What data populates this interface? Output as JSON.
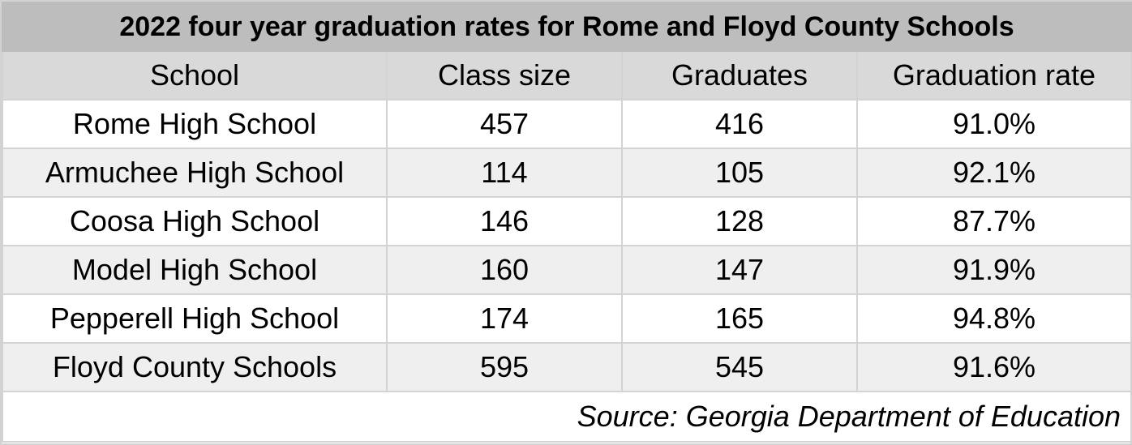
{
  "chart_data": {
    "type": "table",
    "title": "2022 four year graduation rates for Rome and Floyd County Schools",
    "columns": [
      "School",
      "Class size",
      "Graduates",
      "Graduation rate"
    ],
    "rows": [
      {
        "school": "Rome High School",
        "class_size": "457",
        "graduates": "416",
        "rate": "91.0%"
      },
      {
        "school": "Armuchee High School",
        "class_size": "114",
        "graduates": "105",
        "rate": "92.1%"
      },
      {
        "school": "Coosa High School",
        "class_size": "146",
        "graduates": "128",
        "rate": "87.7%"
      },
      {
        "school": "Model High School",
        "class_size": "160",
        "graduates": "147",
        "rate": "91.9%"
      },
      {
        "school": "Pepperell High School",
        "class_size": "174",
        "graduates": "165",
        "rate": "94.8%"
      },
      {
        "school": "Floyd County Schools",
        "class_size": "595",
        "graduates": "545",
        "rate": "91.6%"
      }
    ],
    "source": "Source: Georgia Department of Education"
  },
  "colors": {
    "title_bg": "#bdbdbd",
    "header_bg": "#d9d9d9",
    "row_alt_bg": "#efefef",
    "grid": "#d3d3d3"
  }
}
